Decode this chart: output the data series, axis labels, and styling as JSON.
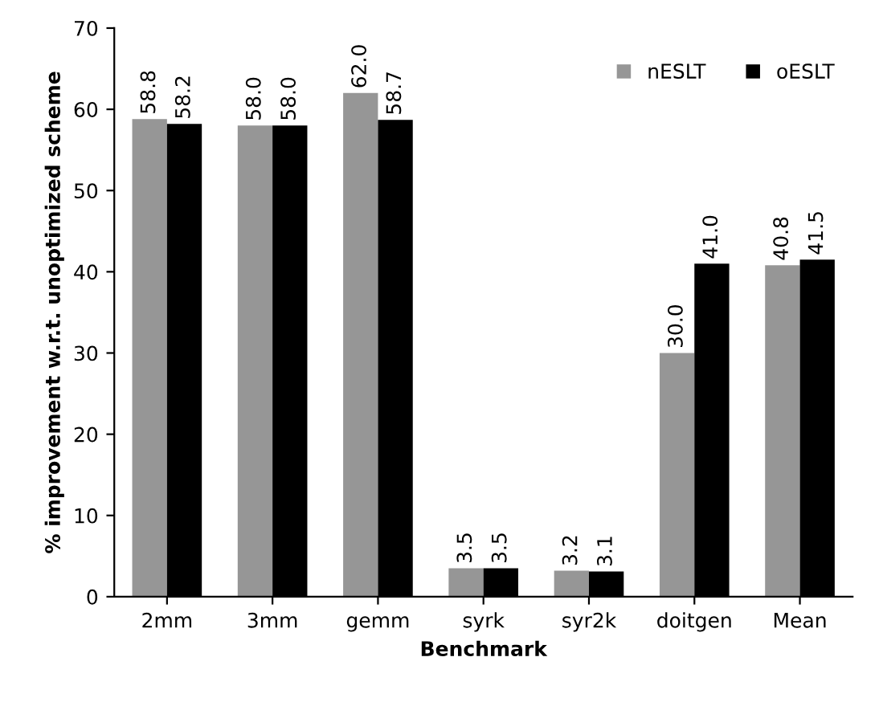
{
  "chart_data": {
    "type": "bar",
    "xlabel": "Benchmark",
    "ylabel": "% improvement w.r.t. unoptimized scheme",
    "categories": [
      "2mm",
      "3mm",
      "gemm",
      "syrk",
      "syr2k",
      "doitgen",
      "Mean"
    ],
    "series": [
      {
        "name": "nESLT",
        "color": "#969696",
        "values": [
          58.8,
          58.0,
          62.0,
          3.5,
          3.2,
          30.0,
          40.8
        ],
        "value_labels": [
          "58.8",
          "58.0",
          "62.0",
          "3.5",
          "3.2",
          "30.0",
          "40.8"
        ]
      },
      {
        "name": "oESLT",
        "color": "#000000",
        "values": [
          58.2,
          58.0,
          58.7,
          3.5,
          3.1,
          41.0,
          41.5
        ],
        "value_labels": [
          "58.2",
          "58.0",
          "58.7",
          "3.5",
          "3.1",
          "41.0",
          "41.5"
        ]
      }
    ],
    "ylim": [
      0,
      70
    ],
    "yticks": [
      0,
      10,
      20,
      30,
      40,
      50,
      60,
      70
    ],
    "grid": false,
    "legend": "top right"
  }
}
